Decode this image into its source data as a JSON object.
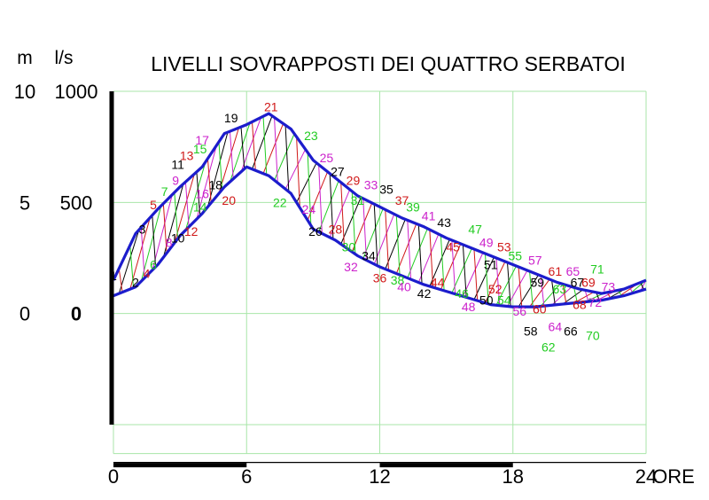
{
  "chart_data": {
    "type": "line",
    "title": "LIVELLI SOVRAPPOSTI DEI QUATTRO SERBATOI",
    "axis_units": {
      "left": "m",
      "right": "l/s"
    },
    "y_ticks": [
      {
        "m": "10",
        "ls": "1000",
        "value": 10
      },
      {
        "m": "5",
        "ls": "500",
        "value": 5
      },
      {
        "m": "0",
        "ls": "0",
        "value": 0
      }
    ],
    "x_ticks": [
      {
        "label": "0",
        "value": 0
      },
      {
        "label": "6",
        "value": 6
      },
      {
        "label": "12",
        "value": 12
      },
      {
        "label": "18",
        "value": 18
      },
      {
        "label": "24",
        "value": 24
      }
    ],
    "x_unit_label": "ORE",
    "xlim": [
      0,
      24
    ],
    "ylim": [
      -5,
      10
    ],
    "grid": true,
    "colors": {
      "envelope": "#1c1ccc",
      "hatch": [
        "#000000",
        "#d01818",
        "#22cc22",
        "#cc22cc"
      ],
      "grid": "#a8e6a8",
      "axis": "#000000"
    },
    "series": [
      {
        "name": "",
        "x": [
          0,
          1,
          2,
          3,
          4,
          5,
          6,
          7,
          8,
          9,
          10,
          11,
          12,
          13,
          14,
          15,
          16,
          17,
          18,
          19,
          20,
          21,
          22,
          23,
          24
        ],
        "values": [
          1.5,
          3.6,
          4.7,
          5.7,
          6.6,
          8.1,
          8.5,
          9.0,
          8.3,
          6.9,
          6.1,
          5.3,
          4.8,
          4.3,
          3.9,
          3.4,
          3.0,
          2.6,
          2.2,
          1.8,
          1.4,
          1.1,
          0.9,
          1.1,
          1.5
        ]
      },
      {
        "name": "",
        "x": [
          0,
          1,
          2,
          3,
          4,
          5,
          6,
          7,
          8,
          9,
          10,
          11,
          12,
          13,
          14,
          15,
          16,
          17,
          18,
          19,
          20,
          21,
          22,
          23,
          24
        ],
        "values": [
          0.8,
          1.2,
          2.2,
          3.5,
          4.5,
          5.7,
          6.6,
          6.2,
          5.4,
          3.8,
          3.3,
          2.6,
          2.1,
          1.7,
          1.3,
          1.0,
          0.7,
          0.4,
          0.3,
          0.3,
          0.4,
          0.5,
          0.6,
          0.8,
          1.1
        ]
      }
    ],
    "numbered_points": [
      {
        "n": "1",
        "x": 0,
        "y": 1.5,
        "c": 0
      },
      {
        "n": "2",
        "x": 1,
        "y": 1.2,
        "c": 0
      },
      {
        "n": "3",
        "x": 1.3,
        "y": 3.6,
        "c": 0
      },
      {
        "n": "4",
        "x": 1.5,
        "y": 1.6,
        "c": 1
      },
      {
        "n": "5",
        "x": 1.8,
        "y": 4.7,
        "c": 1
      },
      {
        "n": "6",
        "x": 1.8,
        "y": 2.0,
        "c": 2
      },
      {
        "n": "7",
        "x": 2.3,
        "y": 5.3,
        "c": 2
      },
      {
        "n": "8",
        "x": 2.5,
        "y": 3.0,
        "c": 3
      },
      {
        "n": "9",
        "x": 2.8,
        "y": 5.8,
        "c": 3
      },
      {
        "n": "10",
        "x": 2.9,
        "y": 3.2,
        "c": 0
      },
      {
        "n": "11",
        "x": 2.9,
        "y": 6.5,
        "c": 0
      },
      {
        "n": "12",
        "x": 3.5,
        "y": 3.5,
        "c": 1
      },
      {
        "n": "13",
        "x": 3.3,
        "y": 6.9,
        "c": 1
      },
      {
        "n": "14",
        "x": 3.9,
        "y": 4.6,
        "c": 2
      },
      {
        "n": "15",
        "x": 3.9,
        "y": 7.2,
        "c": 2
      },
      {
        "n": "16",
        "x": 4.0,
        "y": 5.2,
        "c": 3
      },
      {
        "n": "17",
        "x": 4.0,
        "y": 7.6,
        "c": 3
      },
      {
        "n": "18",
        "x": 4.6,
        "y": 5.6,
        "c": 0
      },
      {
        "n": "19",
        "x": 5.3,
        "y": 8.6,
        "c": 0
      },
      {
        "n": "20",
        "x": 5.2,
        "y": 4.9,
        "c": 1
      },
      {
        "n": "21",
        "x": 7.1,
        "y": 9.1,
        "c": 1
      },
      {
        "n": "22",
        "x": 7.5,
        "y": 4.8,
        "c": 2
      },
      {
        "n": "23",
        "x": 8.9,
        "y": 7.8,
        "c": 2
      },
      {
        "n": "24",
        "x": 8.8,
        "y": 4.5,
        "c": 3
      },
      {
        "n": "25",
        "x": 9.6,
        "y": 6.8,
        "c": 3
      },
      {
        "n": "26",
        "x": 9.1,
        "y": 3.5,
        "c": 0
      },
      {
        "n": "27",
        "x": 10.1,
        "y": 6.2,
        "c": 0
      },
      {
        "n": "28",
        "x": 10.0,
        "y": 3.6,
        "c": 1
      },
      {
        "n": "29",
        "x": 10.8,
        "y": 5.8,
        "c": 1
      },
      {
        "n": "30",
        "x": 10.6,
        "y": 2.8,
        "c": 2
      },
      {
        "n": "31",
        "x": 11.0,
        "y": 4.9,
        "c": 2
      },
      {
        "n": "32",
        "x": 10.7,
        "y": 1.9,
        "c": 3
      },
      {
        "n": "33",
        "x": 11.6,
        "y": 5.6,
        "c": 3
      },
      {
        "n": "34",
        "x": 11.5,
        "y": 2.4,
        "c": 0
      },
      {
        "n": "35",
        "x": 12.3,
        "y": 5.4,
        "c": 0
      },
      {
        "n": "36",
        "x": 12.0,
        "y": 1.4,
        "c": 1
      },
      {
        "n": "37",
        "x": 13.0,
        "y": 4.9,
        "c": 1
      },
      {
        "n": "38",
        "x": 12.8,
        "y": 1.3,
        "c": 2
      },
      {
        "n": "39",
        "x": 13.5,
        "y": 4.6,
        "c": 2
      },
      {
        "n": "40",
        "x": 13.1,
        "y": 1.0,
        "c": 3
      },
      {
        "n": "41",
        "x": 14.2,
        "y": 4.2,
        "c": 3
      },
      {
        "n": "42",
        "x": 14.0,
        "y": 0.7,
        "c": 0
      },
      {
        "n": "43",
        "x": 14.9,
        "y": 3.9,
        "c": 0
      },
      {
        "n": "44",
        "x": 14.6,
        "y": 1.2,
        "c": 1
      },
      {
        "n": "45",
        "x": 15.3,
        "y": 2.8,
        "c": 1
      },
      {
        "n": "46",
        "x": 15.7,
        "y": 0.7,
        "c": 2
      },
      {
        "n": "47",
        "x": 16.3,
        "y": 3.6,
        "c": 2
      },
      {
        "n": "48",
        "x": 16.0,
        "y": 0.1,
        "c": 3
      },
      {
        "n": "49",
        "x": 16.8,
        "y": 3.0,
        "c": 3
      },
      {
        "n": "50",
        "x": 16.8,
        "y": 0.4,
        "c": 0
      },
      {
        "n": "51",
        "x": 17.0,
        "y": 2.0,
        "c": 0
      },
      {
        "n": "52",
        "x": 17.2,
        "y": 0.9,
        "c": 1
      },
      {
        "n": "53",
        "x": 17.6,
        "y": 2.8,
        "c": 1
      },
      {
        "n": "54",
        "x": 17.6,
        "y": 0.4,
        "c": 2
      },
      {
        "n": "55",
        "x": 18.1,
        "y": 2.4,
        "c": 2
      },
      {
        "n": "56",
        "x": 18.3,
        "y": -0.1,
        "c": 3
      },
      {
        "n": "57",
        "x": 19.0,
        "y": 2.2,
        "c": 3
      },
      {
        "n": "58",
        "x": 18.8,
        "y": -1.0,
        "c": 0
      },
      {
        "n": "59",
        "x": 19.1,
        "y": 1.2,
        "c": 0
      },
      {
        "n": "60",
        "x": 19.2,
        "y": 0.0,
        "c": 1
      },
      {
        "n": "61",
        "x": 19.9,
        "y": 1.7,
        "c": 1
      },
      {
        "n": "62",
        "x": 19.6,
        "y": -1.7,
        "c": 2
      },
      {
        "n": "63",
        "x": 20.1,
        "y": 0.9,
        "c": 2
      },
      {
        "n": "64",
        "x": 19.9,
        "y": -0.8,
        "c": 3
      },
      {
        "n": "65",
        "x": 20.7,
        "y": 1.7,
        "c": 3
      },
      {
        "n": "66",
        "x": 20.6,
        "y": -1.0,
        "c": 0
      },
      {
        "n": "67",
        "x": 20.9,
        "y": 1.2,
        "c": 0
      },
      {
        "n": "68",
        "x": 21.0,
        "y": 0.2,
        "c": 1
      },
      {
        "n": "69",
        "x": 21.4,
        "y": 1.2,
        "c": 1
      },
      {
        "n": "70",
        "x": 21.6,
        "y": -1.2,
        "c": 2
      },
      {
        "n": "71",
        "x": 21.8,
        "y": 1.8,
        "c": 2
      },
      {
        "n": "72",
        "x": 21.7,
        "y": 0.3,
        "c": 3
      },
      {
        "n": "73",
        "x": 22.3,
        "y": 1.0,
        "c": 3
      }
    ]
  }
}
